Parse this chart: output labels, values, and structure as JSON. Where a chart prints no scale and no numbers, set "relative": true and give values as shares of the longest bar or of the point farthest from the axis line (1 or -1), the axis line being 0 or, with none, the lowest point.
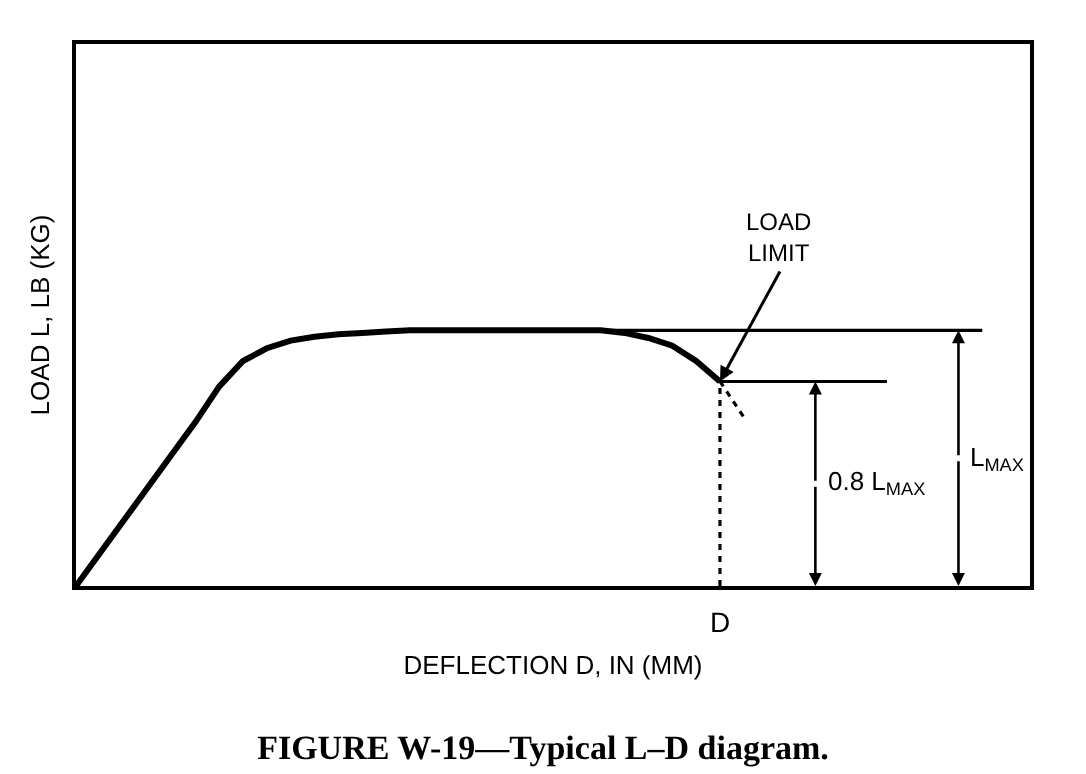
{
  "chart_data": {
    "type": "line",
    "relative": true,
    "title": "FIGURE W-19—Typical L–D diagram.",
    "xlabel": "DEFLECTION D, IN (MM)",
    "ylabel": "LOAD L, LB (KG)",
    "categories": [
      null,
      null,
      null,
      null,
      null,
      null,
      null,
      null,
      null,
      null,
      null,
      null,
      null,
      null,
      null,
      null,
      null,
      null,
      null,
      null,
      null,
      null,
      null,
      null,
      null,
      null,
      null,
      null,
      null,
      null,
      null,
      null,
      null,
      null,
      null,
      null,
      null,
      null,
      null,
      null,
      null
    ],
    "tick_labels": false,
    "marker": "none",
    "series": [
      {
        "color": "#000000",
        "line_style": "solid",
        "values": [
          0,
          0.128,
          0.256,
          0.384,
          0.512,
          0.64,
          0.78,
          0.88,
          0.93,
          0.96,
          0.975,
          0.985,
          0.99,
          0.995,
          1,
          1,
          1,
          1,
          1,
          1,
          1,
          1,
          1,
          0.99,
          0.97,
          0.94,
          0.88,
          0.8,
          null,
          null,
          null,
          null,
          null,
          null,
          null,
          null,
          null,
          null,
          null,
          null,
          null
        ]
      },
      {
        "color": "#000000",
        "line_style": "dotted",
        "values": [
          null,
          null,
          null,
          null,
          null,
          null,
          null,
          null,
          null,
          null,
          null,
          null,
          null,
          null,
          null,
          null,
          null,
          null,
          null,
          null,
          null,
          null,
          null,
          null,
          null,
          null,
          null,
          0.8,
          0.66,
          null,
          null,
          null,
          null,
          null,
          null,
          null,
          null,
          null,
          null,
          null,
          null
        ]
      },
      {
        "color": "#000000",
        "line_style": "solid",
        "values": [
          null,
          null,
          null,
          null,
          null,
          null,
          null,
          null,
          null,
          null,
          null,
          null,
          null,
          null,
          null,
          null,
          null,
          null,
          null,
          null,
          1,
          1,
          1,
          1,
          1,
          1,
          1,
          1,
          1,
          1,
          1,
          1,
          1,
          1,
          1,
          1,
          1,
          1,
          1,
          null,
          null
        ]
      },
      {
        "color": "#000000",
        "line_style": "solid",
        "values": [
          null,
          null,
          null,
          null,
          null,
          null,
          null,
          null,
          null,
          null,
          null,
          null,
          null,
          null,
          null,
          null,
          null,
          null,
          null,
          null,
          null,
          null,
          null,
          null,
          null,
          null,
          null,
          0.8,
          0.8,
          0.8,
          0.8,
          0.8,
          0.8,
          0.8,
          0.8,
          null,
          null,
          null,
          null,
          null,
          null
        ]
      }
    ],
    "annotations": [
      "LOAD\nLIMIT",
      "L$_{MAX}$",
      "0.8 L$_{MAX}$",
      "D"
    ]
  }
}
